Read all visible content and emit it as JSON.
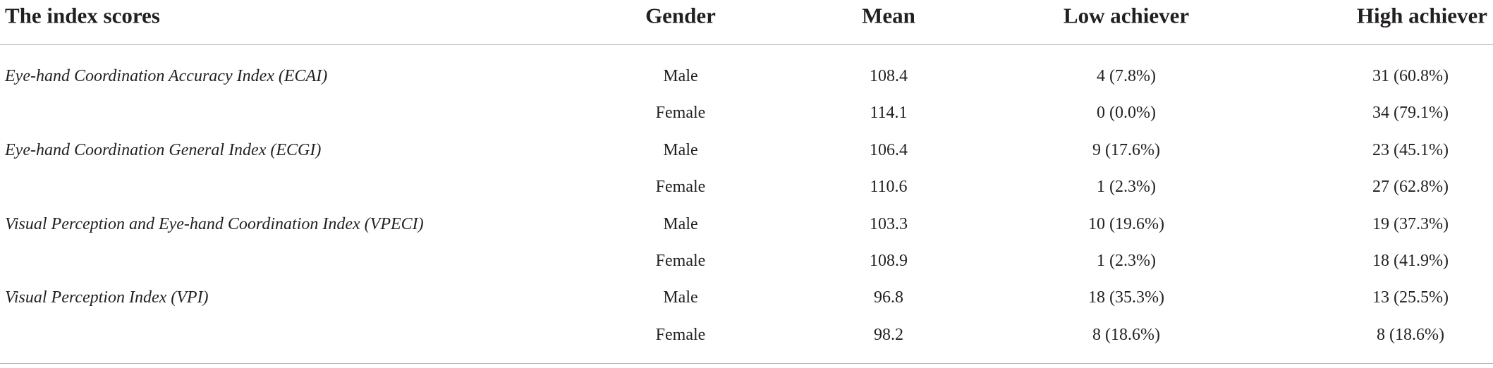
{
  "table": {
    "header": [
      "The index scores",
      "Gender",
      "Mean",
      "Low achiever",
      "High achiever"
    ],
    "groups": [
      {
        "index": "Eye-hand Coordination Accuracy Index (ECAI)",
        "rows": [
          [
            "Male",
            "108.4",
            "4 (7.8%)",
            "31 (60.8%)"
          ],
          [
            "Female",
            "114.1",
            "0 (0.0%)",
            "34 (79.1%)"
          ]
        ]
      },
      {
        "index": "Eye-hand Coordination General Index (ECGI)",
        "rows": [
          [
            "Male",
            "106.4",
            "9 (17.6%)",
            "23 (45.1%)"
          ],
          [
            "Female",
            "110.6",
            "1 (2.3%)",
            "27 (62.8%)"
          ]
        ]
      },
      {
        "index": "Visual Perception and Eye-hand Coordination Index (VPECI)",
        "rows": [
          [
            "Male",
            "103.3",
            "10 (19.6%)",
            "19 (37.3%)"
          ],
          [
            "Female",
            "108.9",
            "1 (2.3%)",
            "18 (41.9%)"
          ]
        ]
      },
      {
        "index": "Visual Perception Index (VPI)",
        "rows": [
          [
            "Male",
            "96.8",
            "18 (35.3%)",
            "13 (25.5%)"
          ],
          [
            "Female",
            "98.2",
            "8 (18.6%)",
            "8 (18.6%)"
          ]
        ]
      }
    ]
  }
}
